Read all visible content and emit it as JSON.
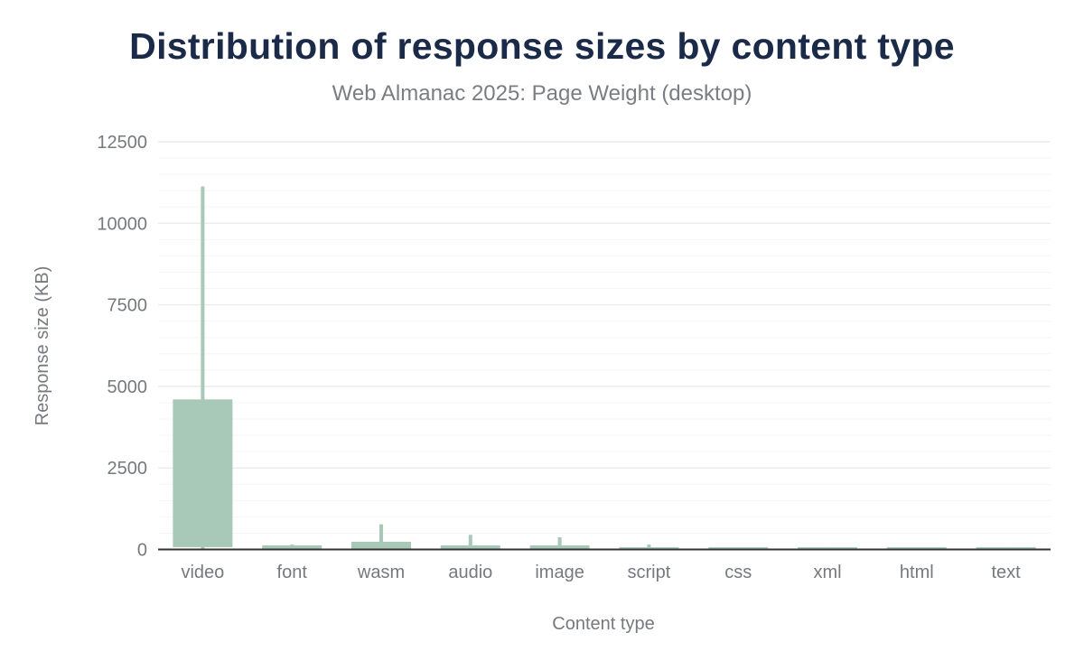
{
  "chart_data": {
    "type": "box",
    "title": "Distribution of response sizes by content type",
    "subtitle": "Web Almanac 2025: Page Weight (desktop)",
    "xlabel": "Content type",
    "ylabel": "Response size (KB)",
    "ylim": [
      0,
      12500
    ],
    "yticks": [
      0,
      2500,
      5000,
      7500,
      10000,
      12500
    ],
    "minor_grid_step": 500,
    "grid": true,
    "color": "#a8c9b8",
    "categories": [
      "video",
      "font",
      "wasm",
      "audio",
      "image",
      "script",
      "css",
      "xml",
      "html",
      "text"
    ],
    "series": [
      {
        "whisker_low": [
          10,
          5,
          5,
          5,
          5,
          5,
          2,
          2,
          2,
          2
        ],
        "box_low": [
          70,
          20,
          15,
          15,
          15,
          10,
          5,
          5,
          5,
          5
        ],
        "box_high": [
          4600,
          125,
          235,
          125,
          125,
          70,
          70,
          70,
          70,
          70
        ],
        "whisker_high": [
          11130,
          150,
          770,
          450,
          375,
          150,
          70,
          70,
          70,
          70
        ]
      }
    ]
  }
}
